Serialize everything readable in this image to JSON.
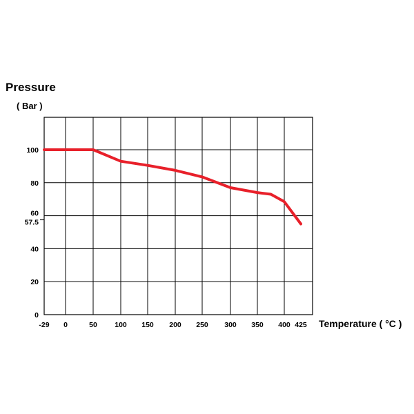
{
  "chart_data": {
    "type": "line",
    "ylabel": "Pressure",
    "yunit": "( Bar )",
    "xlabel": "Temperature ( °C )",
    "x_ticks": [
      "-29",
      "0",
      "50",
      "100",
      "150",
      "200",
      "250",
      "300",
      "350",
      "400",
      "425"
    ],
    "x_tick_values": [
      -29,
      0,
      50,
      100,
      150,
      200,
      250,
      300,
      350,
      400,
      425
    ],
    "y_ticks": [
      "0",
      "20",
      "40",
      "57.5",
      "60",
      "80",
      "100"
    ],
    "y_tick_values": [
      0,
      20,
      40,
      57.5,
      60,
      80,
      100
    ],
    "xlim": [
      -29,
      425
    ],
    "ylim": [
      0,
      120
    ],
    "grid": true,
    "line_color": "#e8202a",
    "series": [
      {
        "x": [
          -29,
          0,
          50,
          100,
          150,
          200,
          250,
          300,
          350,
          375,
          400,
          425
        ],
        "y": [
          100,
          100,
          100,
          93,
          90.5,
          87.5,
          83.5,
          77,
          74,
          73,
          68.5,
          55
        ]
      }
    ]
  }
}
